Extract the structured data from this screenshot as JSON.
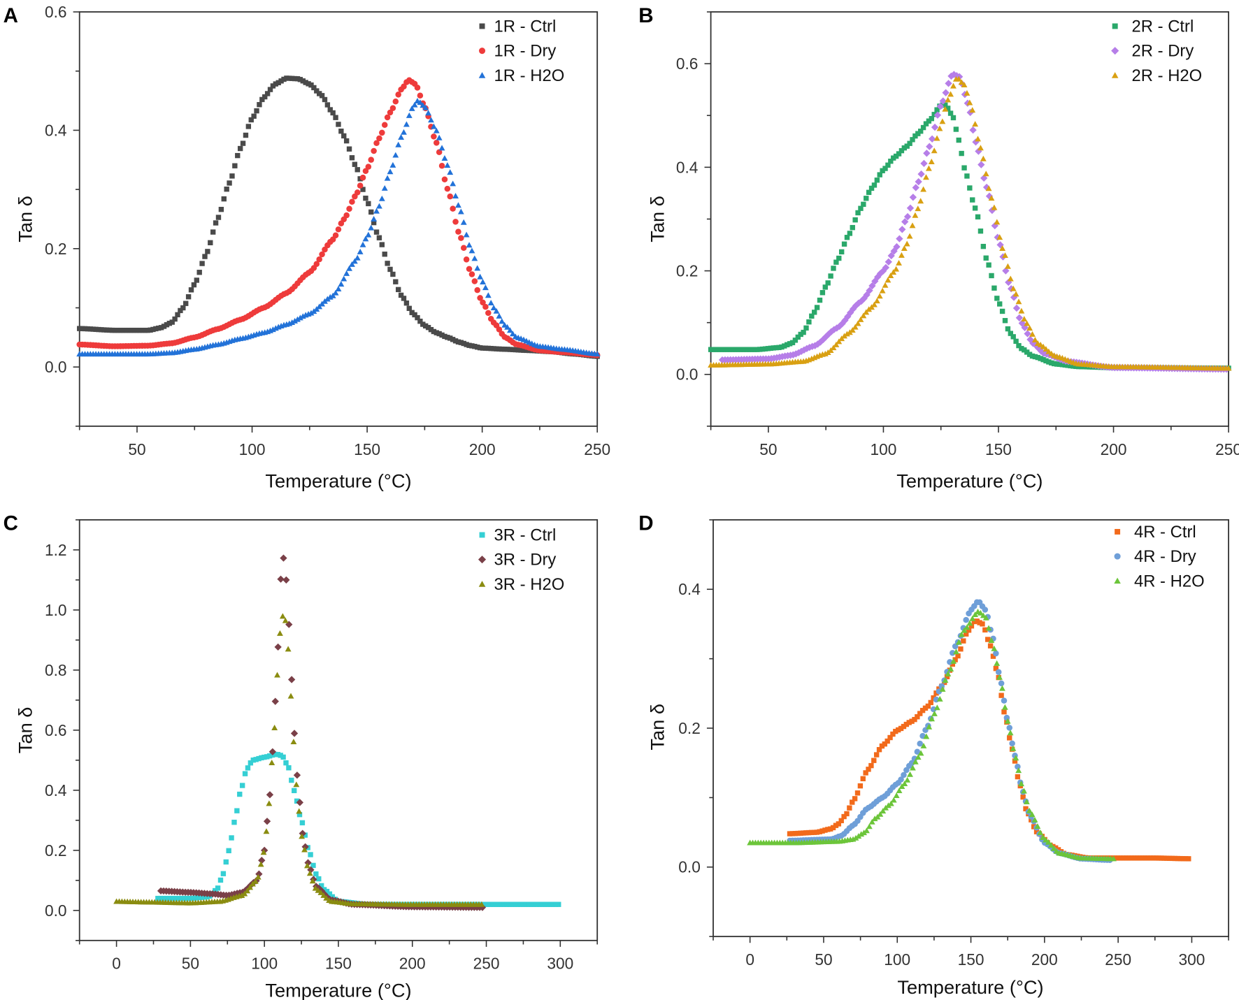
{
  "chart_data": [
    {
      "panel": "A",
      "type": "scatter",
      "xlabel": "Temperature (°C)",
      "ylabel": "Tan δ",
      "xlim": [
        25,
        250
      ],
      "ylim": [
        -0.1,
        0.6
      ],
      "xticks": [
        50,
        100,
        150,
        200,
        250
      ],
      "yticks": [
        0.0,
        0.2,
        0.4,
        0.6
      ],
      "ytick_labels": [
        "0.0",
        "0.2",
        "0.4",
        "0.6"
      ],
      "legend_position": "top-right",
      "series": [
        {
          "name": "1R - Ctrl",
          "marker": "square",
          "color": "#4a4a4a",
          "x": [
            25,
            40,
            55,
            60,
            65,
            70,
            75,
            80,
            85,
            90,
            95,
            100,
            105,
            110,
            115,
            120,
            125,
            130,
            135,
            140,
            145,
            150,
            155,
            160,
            165,
            170,
            175,
            180,
            185,
            190,
            195,
            200,
            210,
            220,
            230,
            240,
            250
          ],
          "y": [
            0.065,
            0.062,
            0.062,
            0.066,
            0.075,
            0.1,
            0.14,
            0.19,
            0.25,
            0.31,
            0.37,
            0.42,
            0.455,
            0.478,
            0.488,
            0.487,
            0.478,
            0.46,
            0.43,
            0.39,
            0.34,
            0.28,
            0.22,
            0.165,
            0.12,
            0.09,
            0.07,
            0.058,
            0.05,
            0.042,
            0.036,
            0.032,
            0.03,
            0.028,
            0.026,
            0.022,
            0.018
          ]
        },
        {
          "name": "1R - Dry",
          "marker": "circle",
          "color": "#ee3b3b",
          "x": [
            25,
            40,
            55,
            65,
            75,
            85,
            95,
            105,
            115,
            125,
            135,
            140,
            145,
            150,
            155,
            160,
            165,
            168,
            171,
            175,
            180,
            185,
            190,
            195,
            200,
            205,
            210,
            215,
            225,
            235,
            250
          ],
          "y": [
            0.038,
            0.035,
            0.036,
            0.04,
            0.05,
            0.064,
            0.08,
            0.1,
            0.125,
            0.16,
            0.215,
            0.25,
            0.29,
            0.335,
            0.385,
            0.43,
            0.47,
            0.485,
            0.478,
            0.44,
            0.38,
            0.3,
            0.225,
            0.16,
            0.11,
            0.075,
            0.05,
            0.038,
            0.028,
            0.025,
            0.02
          ]
        },
        {
          "name": "1R - H2O",
          "marker": "triangle",
          "color": "#2272d8",
          "x": [
            25,
            40,
            55,
            65,
            75,
            85,
            95,
            105,
            115,
            125,
            135,
            145,
            150,
            155,
            160,
            165,
            170,
            172,
            175,
            180,
            185,
            190,
            195,
            200,
            205,
            210,
            215,
            225,
            235,
            250
          ],
          "y": [
            0.022,
            0.022,
            0.022,
            0.024,
            0.03,
            0.038,
            0.048,
            0.058,
            0.072,
            0.09,
            0.12,
            0.18,
            0.22,
            0.27,
            0.33,
            0.39,
            0.44,
            0.45,
            0.44,
            0.4,
            0.34,
            0.27,
            0.2,
            0.145,
            0.1,
            0.07,
            0.05,
            0.035,
            0.03,
            0.022
          ]
        }
      ]
    },
    {
      "panel": "B",
      "type": "scatter",
      "xlabel": "Temperature (°C)",
      "ylabel": "Tan δ",
      "xlim": [
        25,
        250
      ],
      "ylim": [
        -0.1,
        0.7
      ],
      "xticks": [
        50,
        100,
        150,
        200,
        250
      ],
      "yticks": [
        0.0,
        0.2,
        0.4,
        0.6
      ],
      "ytick_labels": [
        "0.0",
        "0.2",
        "0.4",
        "0.6"
      ],
      "legend_position": "top-right",
      "series": [
        {
          "name": "2R - Ctrl",
          "marker": "square",
          "color": "#2aa86a",
          "x": [
            25,
            45,
            55,
            60,
            65,
            70,
            75,
            80,
            85,
            90,
            95,
            100,
            105,
            110,
            115,
            120,
            125,
            127,
            130,
            133,
            135,
            140,
            145,
            150,
            155,
            160,
            165,
            175,
            185,
            200,
            250
          ],
          "y": [
            0.048,
            0.048,
            0.052,
            0.06,
            0.08,
            0.12,
            0.17,
            0.22,
            0.27,
            0.32,
            0.36,
            0.395,
            0.42,
            0.44,
            0.465,
            0.49,
            0.52,
            0.52,
            0.5,
            0.45,
            0.4,
            0.32,
            0.22,
            0.14,
            0.08,
            0.05,
            0.035,
            0.02,
            0.015,
            0.013,
            0.012
          ]
        },
        {
          "name": "2R - Dry",
          "marker": "diamond",
          "color": "#b67ee8",
          "x": [
            30,
            50,
            60,
            70,
            80,
            90,
            100,
            105,
            110,
            115,
            120,
            125,
            130,
            133,
            137,
            140,
            145,
            150,
            155,
            160,
            165,
            170,
            180,
            200,
            250
          ],
          "y": [
            0.028,
            0.03,
            0.037,
            0.055,
            0.09,
            0.14,
            0.2,
            0.24,
            0.3,
            0.37,
            0.44,
            0.52,
            0.58,
            0.575,
            0.52,
            0.45,
            0.36,
            0.26,
            0.17,
            0.1,
            0.06,
            0.04,
            0.025,
            0.013,
            0.01
          ]
        },
        {
          "name": "2R - H2O",
          "marker": "triangle",
          "color": "#d9a012",
          "x": [
            25,
            50,
            65,
            75,
            85,
            95,
            105,
            110,
            115,
            120,
            125,
            128,
            132,
            135,
            138,
            142,
            147,
            152,
            157,
            162,
            167,
            175,
            185,
            200,
            250
          ],
          "y": [
            0.018,
            0.02,
            0.025,
            0.04,
            0.08,
            0.13,
            0.2,
            0.25,
            0.32,
            0.4,
            0.48,
            0.53,
            0.573,
            0.56,
            0.52,
            0.44,
            0.34,
            0.24,
            0.16,
            0.1,
            0.06,
            0.035,
            0.02,
            0.015,
            0.012
          ]
        }
      ]
    },
    {
      "panel": "C",
      "type": "scatter",
      "xlabel": "Temperature (°C)",
      "ylabel": "Tan δ",
      "xlim": [
        -25,
        325
      ],
      "ylim": [
        -0.1,
        1.3
      ],
      "xticks": [
        0,
        50,
        100,
        150,
        200,
        250,
        300
      ],
      "yticks": [
        0.0,
        0.2,
        0.4,
        0.6,
        0.8,
        1.0,
        1.2
      ],
      "ytick_labels": [
        "0.0",
        "0.2",
        "0.4",
        "0.6",
        "0.8",
        "1.0",
        "1.2"
      ],
      "legend_position": "top-right",
      "series": [
        {
          "name": "3R - Ctrl",
          "marker": "square",
          "color": "#35cfd4",
          "x": [
            28,
            50,
            62,
            68,
            72,
            76,
            80,
            84,
            88,
            92,
            100,
            108,
            112,
            116,
            120,
            125,
            130,
            135,
            140,
            150,
            170,
            200,
            250,
            300
          ],
          "y": [
            0.04,
            0.04,
            0.045,
            0.07,
            0.12,
            0.2,
            0.3,
            0.4,
            0.47,
            0.5,
            0.51,
            0.52,
            0.515,
            0.48,
            0.4,
            0.3,
            0.2,
            0.12,
            0.07,
            0.03,
            0.02,
            0.02,
            0.02,
            0.02
          ]
        },
        {
          "name": "3R - Dry",
          "marker": "diamond",
          "color": "#7a4048",
          "x": [
            30,
            50,
            65,
            75,
            85,
            95,
            100,
            103,
            106,
            108,
            110,
            111,
            112,
            114,
            116,
            118,
            120,
            123,
            126,
            130,
            135,
            145,
            160,
            200,
            248
          ],
          "y": [
            0.065,
            0.06,
            0.055,
            0.05,
            0.06,
            0.1,
            0.2,
            0.35,
            0.55,
            0.75,
            0.95,
            1.1,
            1.19,
            1.15,
            1.0,
            0.8,
            0.6,
            0.4,
            0.25,
            0.15,
            0.08,
            0.035,
            0.02,
            0.012,
            0.01
          ]
        },
        {
          "name": "3R - H2O",
          "marker": "triangle",
          "color": "#8a8c10",
          "x": [
            0,
            20,
            50,
            70,
            85,
            95,
            100,
            103,
            106,
            109,
            111,
            113,
            115,
            117,
            119,
            122,
            125,
            130,
            135,
            145,
            160,
            200,
            248
          ],
          "y": [
            0.03,
            0.028,
            0.025,
            0.03,
            0.05,
            0.1,
            0.2,
            0.35,
            0.55,
            0.8,
            0.95,
            0.99,
            0.95,
            0.8,
            0.6,
            0.4,
            0.25,
            0.13,
            0.07,
            0.03,
            0.022,
            0.02,
            0.02
          ]
        }
      ]
    },
    {
      "panel": "D",
      "type": "scatter",
      "xlabel": "Temperature (°C)",
      "ylabel": "Tan δ",
      "xlim": [
        -25,
        325
      ],
      "ylim": [
        -0.1,
        0.5
      ],
      "xticks": [
        0,
        50,
        100,
        150,
        200,
        250,
        300
      ],
      "yticks": [
        0.0,
        0.2,
        0.4
      ],
      "ytick_labels": [
        "0.0",
        "0.2",
        "0.4"
      ],
      "legend_position": "top-right",
      "series": [
        {
          "name": "4R - Ctrl",
          "marker": "square",
          "color": "#f26a1b",
          "x": [
            27,
            45,
            55,
            60,
            65,
            70,
            80,
            90,
            100,
            110,
            120,
            130,
            140,
            148,
            153,
            158,
            163,
            168,
            173,
            178,
            183,
            188,
            195,
            205,
            215,
            230,
            250,
            275,
            298
          ],
          "y": [
            0.048,
            0.05,
            0.055,
            0.062,
            0.075,
            0.095,
            0.14,
            0.175,
            0.197,
            0.21,
            0.23,
            0.26,
            0.3,
            0.34,
            0.355,
            0.35,
            0.32,
            0.28,
            0.22,
            0.17,
            0.12,
            0.08,
            0.05,
            0.03,
            0.018,
            0.013,
            0.013,
            0.013,
            0.012
          ]
        },
        {
          "name": "4R - Dry",
          "marker": "circle",
          "color": "#6f9fd8",
          "x": [
            27,
            55,
            62,
            70,
            80,
            90,
            100,
            110,
            120,
            130,
            140,
            150,
            155,
            160,
            165,
            170,
            175,
            180,
            185,
            190,
            200,
            210,
            225,
            245
          ],
          "y": [
            0.038,
            0.04,
            0.045,
            0.06,
            0.085,
            0.1,
            0.12,
            0.15,
            0.2,
            0.26,
            0.32,
            0.37,
            0.383,
            0.37,
            0.33,
            0.27,
            0.21,
            0.16,
            0.11,
            0.075,
            0.035,
            0.02,
            0.012,
            0.01
          ]
        },
        {
          "name": "4R - H2O",
          "marker": "triangle",
          "color": "#6cc53a",
          "x": [
            0,
            30,
            60,
            70,
            78,
            85,
            95,
            105,
            115,
            125,
            135,
            145,
            155,
            160,
            165,
            170,
            175,
            180,
            185,
            190,
            200,
            210,
            225,
            248
          ],
          "y": [
            0.035,
            0.035,
            0.037,
            0.04,
            0.05,
            0.07,
            0.09,
            0.12,
            0.16,
            0.22,
            0.28,
            0.34,
            0.368,
            0.36,
            0.32,
            0.27,
            0.21,
            0.16,
            0.115,
            0.08,
            0.04,
            0.02,
            0.013,
            0.012
          ]
        }
      ]
    }
  ]
}
